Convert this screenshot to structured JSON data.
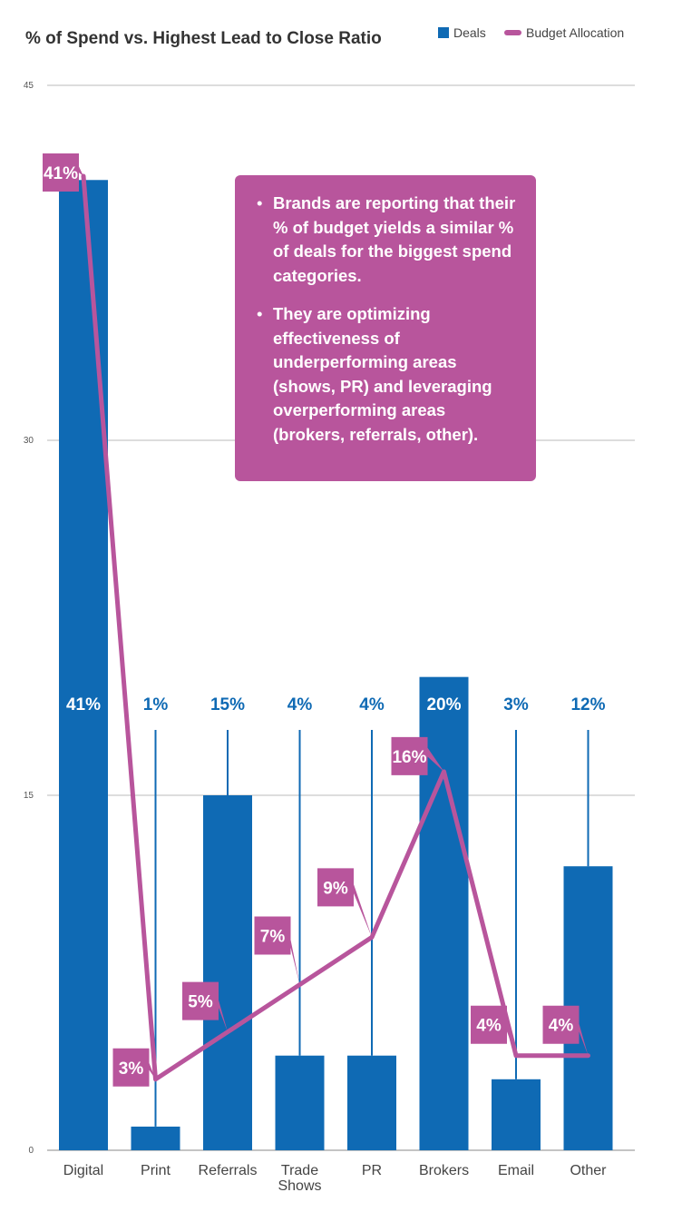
{
  "chart_data": {
    "type": "bar",
    "title": "% of Spend vs. Highest Lead to Close Ratio",
    "categories": [
      "Digital",
      "Print",
      "Referrals",
      "Trade Shows",
      "PR",
      "Brokers",
      "Email",
      "Other"
    ],
    "category_lines": [
      [
        "Digital"
      ],
      [
        "Print"
      ],
      [
        "Referrals"
      ],
      [
        "Trade",
        "Shows"
      ],
      [
        "PR"
      ],
      [
        "Brokers"
      ],
      [
        "Email"
      ],
      [
        "Other"
      ]
    ],
    "series": [
      {
        "name": "Deals",
        "type": "bar",
        "color": "#0f6ab4",
        "values": [
          41,
          1,
          15,
          4,
          4,
          20,
          3,
          12
        ],
        "labels": [
          "41%",
          "1%",
          "15%",
          "4%",
          "4%",
          "20%",
          "3%",
          "12%"
        ]
      },
      {
        "name": "Budget Allocation",
        "type": "line",
        "color": "#b8559c",
        "values": [
          41,
          3,
          5,
          7,
          9,
          16,
          4,
          4
        ],
        "labels": [
          "41%",
          "3%",
          "5%",
          "7%",
          "9%",
          "16%",
          "4%",
          "4%"
        ]
      }
    ],
    "ylim": [
      0,
      45
    ],
    "yticks": [
      0,
      15,
      30,
      45
    ],
    "grid": true,
    "legend": "top-right",
    "callout": {
      "bullets": [
        "Brands are reporting that their % of budget yields a similar % of deals for the biggest spend categories.",
        "They are optimizing effectiveness of underperforming areas (shows, PR) and leveraging overperforming areas (brokers, referrals, other)."
      ]
    }
  }
}
